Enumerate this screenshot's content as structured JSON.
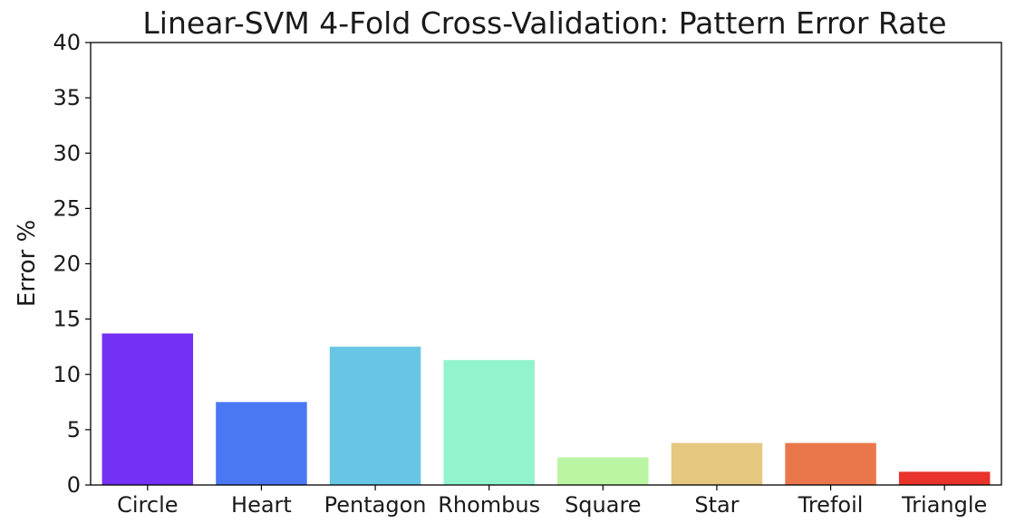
{
  "chart_data": {
    "type": "bar",
    "title": "Linear-SVM 4-Fold Cross-Validation: Pattern Error Rate",
    "xlabel": "",
    "ylabel": "Error %",
    "ylim": [
      0,
      40
    ],
    "yticks": [
      0,
      5,
      10,
      15,
      20,
      25,
      30,
      35,
      40
    ],
    "categories": [
      "Circle",
      "Heart",
      "Pentagon",
      "Rhombus",
      "Square",
      "Star",
      "Trefoil",
      "Triangle"
    ],
    "values": [
      13.7,
      7.5,
      12.5,
      11.3,
      2.5,
      3.8,
      3.8,
      1.2
    ],
    "colors": [
      "#7530f5",
      "#4a77f2",
      "#66c6e3",
      "#92f4cd",
      "#bbf5a4",
      "#e5c77f",
      "#e9774b",
      "#e8322a"
    ],
    "grid": false,
    "legend": "none"
  }
}
